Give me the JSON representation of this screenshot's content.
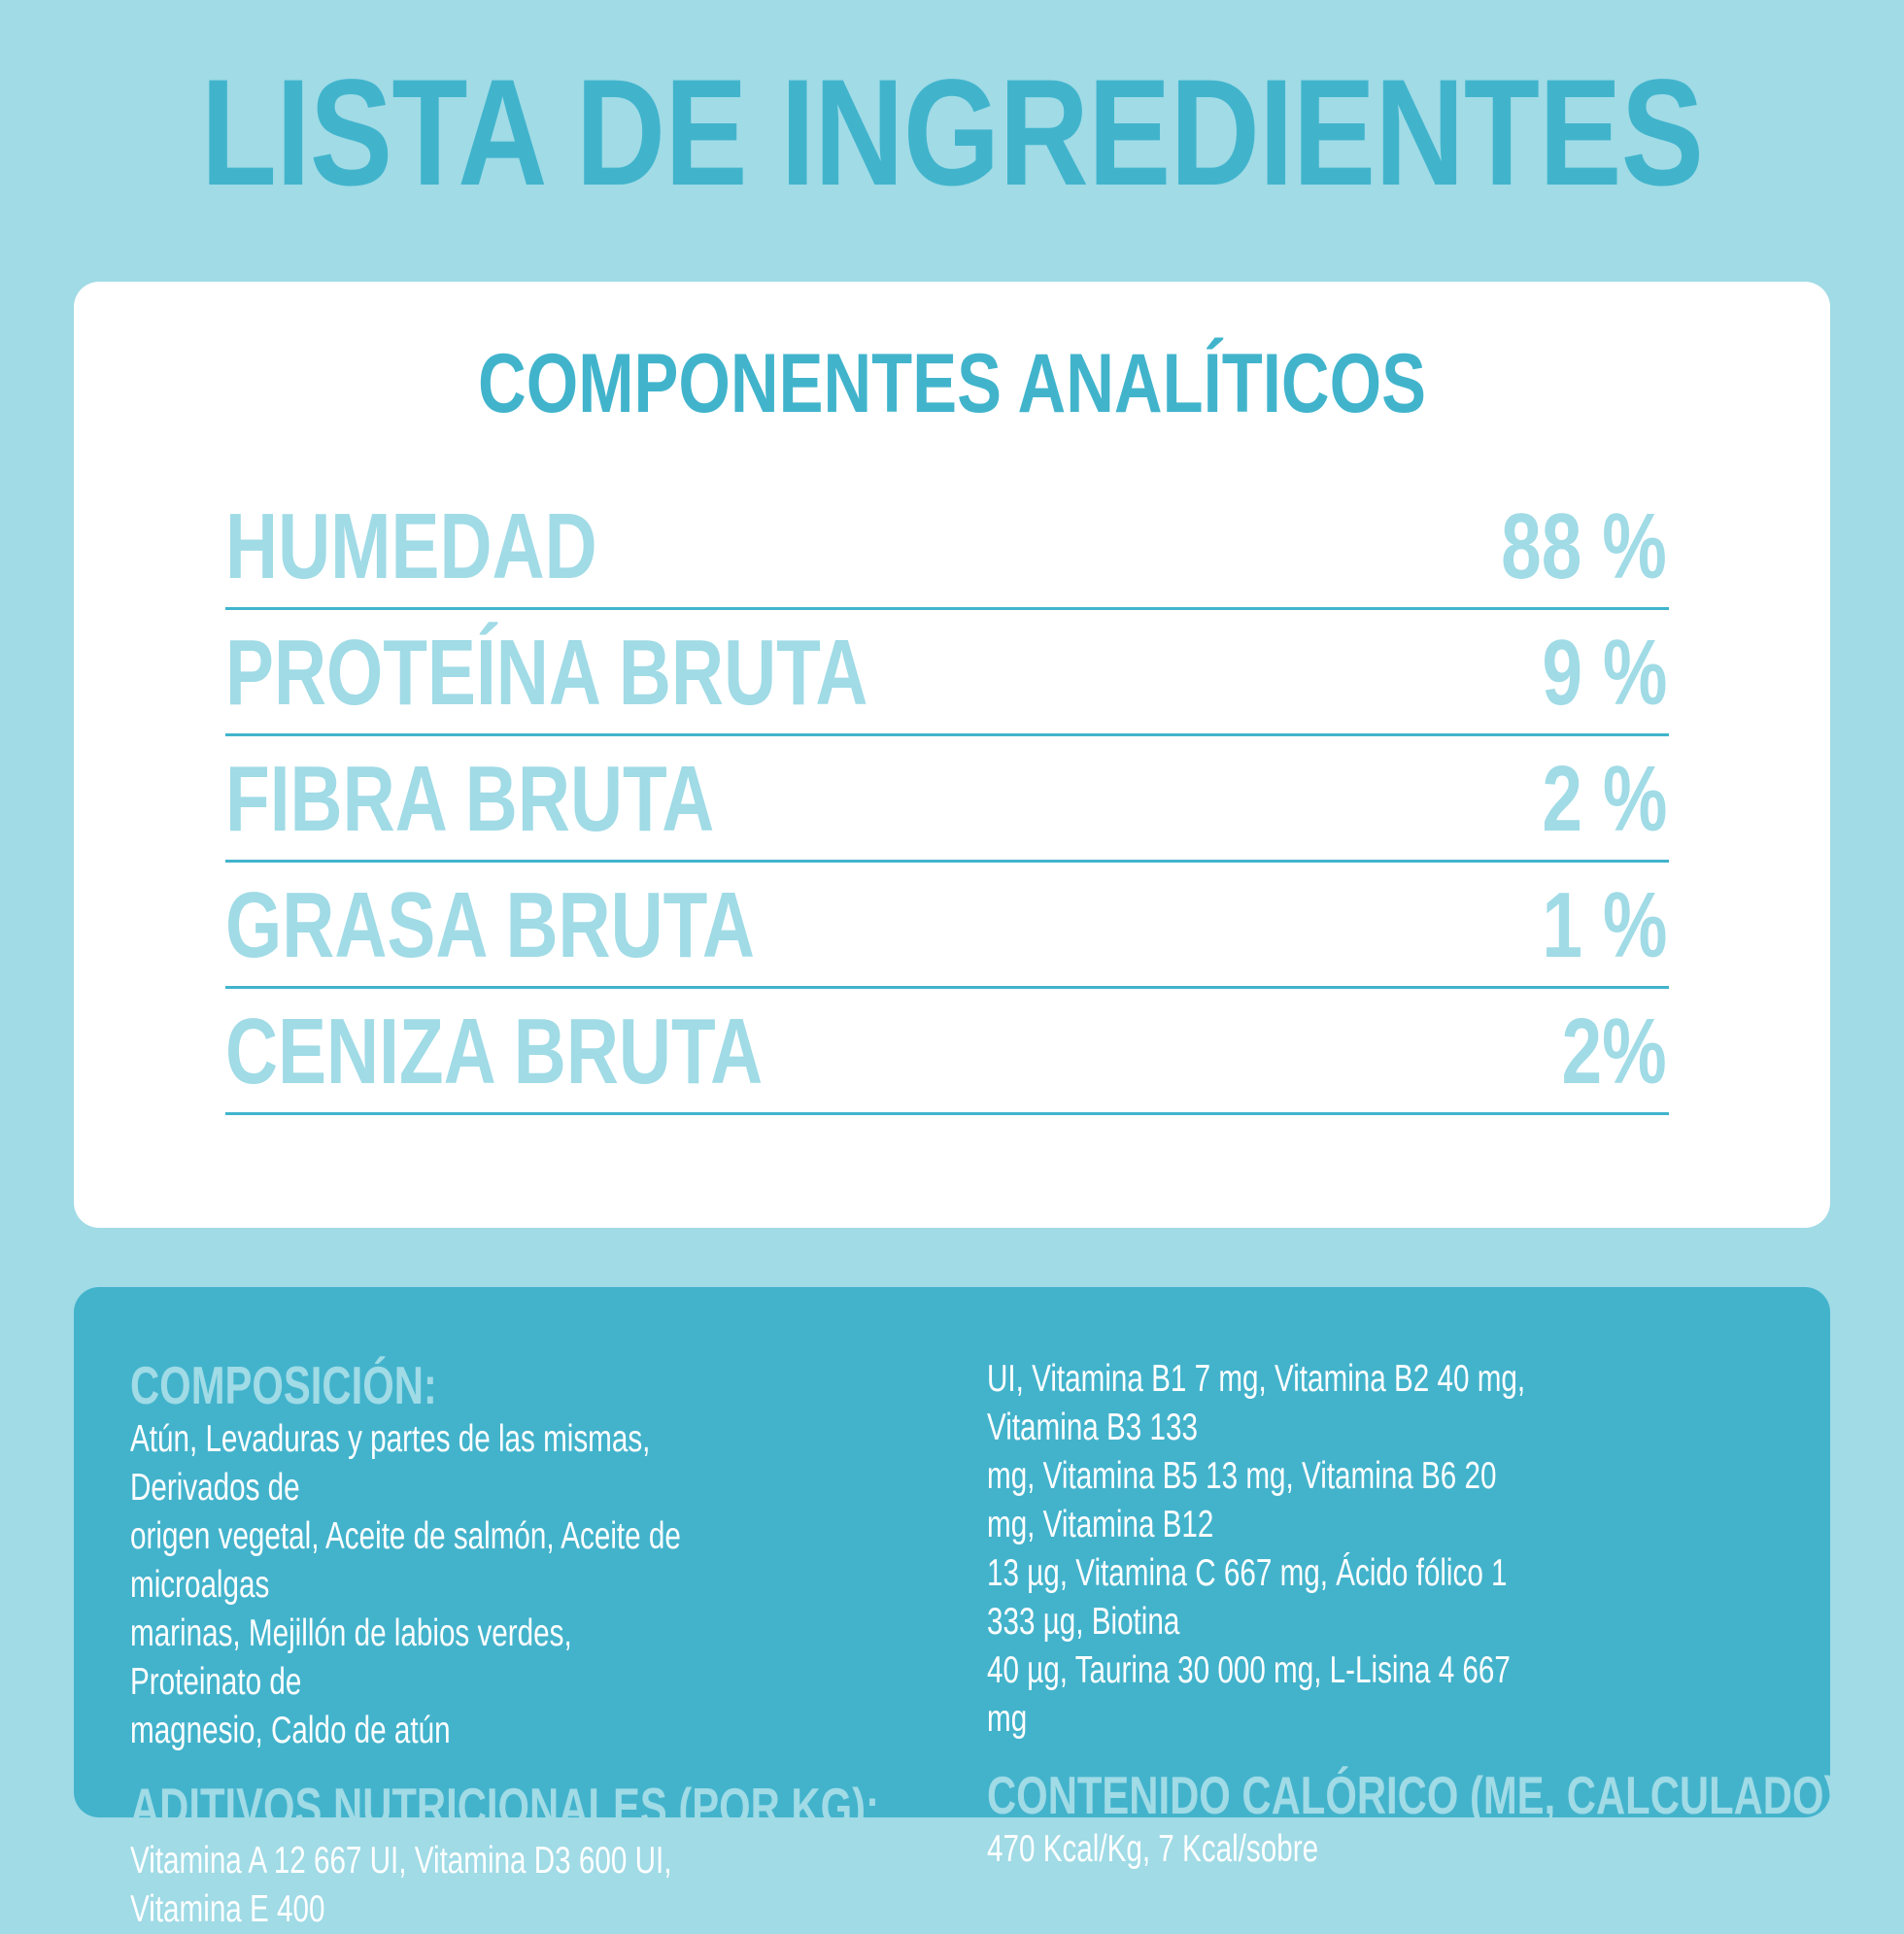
{
  "title": "LISTA DE INGREDIENTES",
  "analysis": {
    "title": "COMPONENTES ANALÍTICOS",
    "rows": [
      {
        "label": "HUMEDAD",
        "value": "88 %"
      },
      {
        "label": "PROTEÍNA BRUTA",
        "value": "9 %"
      },
      {
        "label": "FIBRA BRUTA",
        "value": "2 %"
      },
      {
        "label": "GRASA BRUTA",
        "value": "1 %"
      },
      {
        "label": "CENIZA BRUTA",
        "value": "2%"
      }
    ]
  },
  "composition": {
    "heading": "COMPOSICIÓN:",
    "lines": [
      "Atún, Levaduras y partes de las mismas, Derivados de",
      "origen vegetal, Aceite de salmón, Aceite de microalgas",
      "marinas, Mejillón de labios verdes, Proteinato de",
      "magnesio, Caldo de atún"
    ]
  },
  "additives": {
    "heading": "ADITIVOS NUTRICIONALES (POR KG):",
    "lines_left": [
      "Vitamina A 12 667 UI, Vitamina D3 600 UI, Vitamina E 400"
    ],
    "lines_right": [
      "UI, Vitamina B1 7 mg, Vitamina B2 40 mg, Vitamina B3 133",
      "mg, Vitamina B5 13 mg, Vitamina B6 20 mg, Vitamina B12",
      "13 µg, Vitamina C 667 mg, Ácido fólico 1 333 µg, Biotina",
      "40 µg, Taurina 30 000 mg, L-Lisina 4 667 mg"
    ]
  },
  "caloric": {
    "heading": "CONTENIDO CALÓRICO (ME, CALCULADO):",
    "text": "470 Kcal/Kg, 7 Kcal/sobre"
  },
  "colors": {
    "background": "#a0dbe6",
    "accent": "#41b4cc",
    "card": "#ffffff",
    "composition_card": "#43b3cc"
  }
}
